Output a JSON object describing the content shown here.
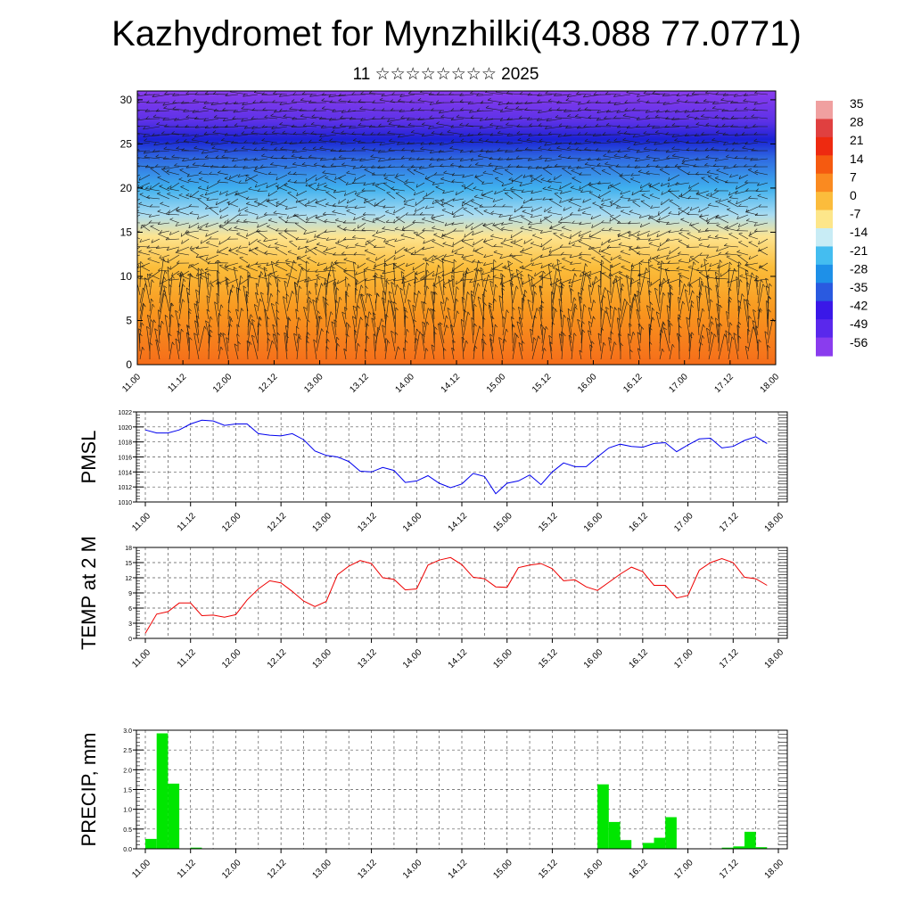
{
  "title": "Kazhydromet for Mynzhilki(43.088 77.0771)",
  "subtitle": "11 ☆☆☆☆☆☆☆☆ 2025",
  "colors": {
    "pmsl_line": "#0000ee",
    "temp_line": "#ee0000",
    "precip_bar": "#00e600"
  },
  "chart_data": [
    {
      "type": "heatmap",
      "name_hint": "vertical cross-section",
      "x_ticks": [
        "11.00",
        "11.12",
        "12.00",
        "12.12",
        "13.00",
        "13.12",
        "14.00",
        "14.12",
        "15.00",
        "15.12",
        "16.00",
        "16.12",
        "17.00",
        "17.12",
        "18.00"
      ],
      "y_ticks": [
        "0",
        "5",
        "10",
        "15",
        "20",
        "25",
        "30"
      ],
      "ylim": [
        0,
        31
      ],
      "colorbar_labels": [
        "35",
        "28",
        "21",
        "14",
        "7",
        "0",
        "-7",
        "-14",
        "-21",
        "-28",
        "-35",
        "-42",
        "-49",
        "-56"
      ],
      "colorbar_colors": [
        "#f0a0a0",
        "#e04040",
        "#ee2a10",
        "#f55a10",
        "#fa8a20",
        "#fbbc3c",
        "#fde68a",
        "#c8ecf5",
        "#44bdf0",
        "#1e90e8",
        "#2a5ae0",
        "#3a18e8",
        "#5a28ec",
        "#8a3cee"
      ],
      "color_levels": [
        {
          "y": 0,
          "c": "#f56d1a"
        },
        {
          "y": 6,
          "c": "#f8961e"
        },
        {
          "y": 11,
          "c": "#fbbd3a"
        },
        {
          "y": 14.5,
          "c": "#fde490"
        },
        {
          "y": 17,
          "c": "#a9dcf2"
        },
        {
          "y": 20,
          "c": "#3fb0ee"
        },
        {
          "y": 23.5,
          "c": "#2e66e0"
        },
        {
          "y": 25.5,
          "c": "#1a22d4"
        },
        {
          "y": 27.5,
          "c": "#5b31e6"
        },
        {
          "y": 31,
          "c": "#8a3cee"
        }
      ]
    },
    {
      "type": "line",
      "ylabel": "PMSL",
      "x_ticks": [
        "11.00",
        "11.12",
        "12.00",
        "12.12",
        "13.00",
        "13.12",
        "14.00",
        "14.12",
        "15.00",
        "15.12",
        "16.00",
        "16.12",
        "17.00",
        "17.12",
        "18.00"
      ],
      "y_ticks": [
        "1010",
        "1012",
        "1014",
        "1016",
        "1018",
        "1020",
        "1022"
      ],
      "ylim": [
        1010,
        1022
      ],
      "x_hours": [
        0,
        3,
        6,
        9,
        12,
        15,
        18,
        21,
        24,
        27,
        30,
        33,
        36,
        39,
        42,
        45,
        48,
        51,
        54,
        57,
        60,
        63,
        66,
        69,
        72,
        75,
        78,
        81,
        84,
        87,
        90,
        93,
        96,
        99,
        102,
        105,
        108,
        111,
        114,
        117,
        120,
        123,
        126,
        129,
        132,
        135,
        138,
        141,
        144,
        147,
        150,
        153,
        156,
        159,
        162,
        165
      ],
      "values": [
        1019.6,
        1019.2,
        1019.2,
        1019.6,
        1020.4,
        1020.9,
        1020.8,
        1020.2,
        1020.4,
        1020.4,
        1019.1,
        1018.9,
        1018.8,
        1019.1,
        1018.3,
        1016.8,
        1016.2,
        1016.0,
        1015.4,
        1014.1,
        1014.0,
        1014.6,
        1014.2,
        1012.6,
        1012.8,
        1013.5,
        1012.5,
        1011.9,
        1012.4,
        1013.8,
        1013.4,
        1011.1,
        1012.5,
        1012.8,
        1013.6,
        1012.3,
        1014.0,
        1015.2,
        1014.7,
        1014.7,
        1016.0,
        1017.2,
        1017.7,
        1017.4,
        1017.3,
        1017.8,
        1017.9,
        1016.7,
        1017.6,
        1018.4,
        1018.5,
        1017.2,
        1017.4,
        1018.2,
        1018.7,
        1017.8
      ]
    },
    {
      "type": "line",
      "ylabel": "TEMP at 2 M",
      "x_ticks": [
        "11.00",
        "11.12",
        "12.00",
        "12.12",
        "13.00",
        "13.12",
        "14.00",
        "14.12",
        "15.00",
        "15.12",
        "16.00",
        "16.12",
        "17.00",
        "17.12",
        "18.00"
      ],
      "y_ticks": [
        "0",
        "3",
        "6",
        "9",
        "12",
        "15",
        "18"
      ],
      "ylim": [
        0,
        18
      ],
      "x_hours": [
        0,
        3,
        6,
        9,
        12,
        15,
        18,
        21,
        24,
        27,
        30,
        33,
        36,
        39,
        42,
        45,
        48,
        51,
        54,
        57,
        60,
        63,
        66,
        69,
        72,
        75,
        78,
        81,
        84,
        87,
        90,
        93,
        96,
        99,
        102,
        105,
        108,
        111,
        114,
        117,
        120,
        123,
        126,
        129,
        132,
        135,
        138,
        141,
        144,
        147,
        150,
        153,
        156,
        159,
        162,
        165
      ],
      "values": [
        1.0,
        4.8,
        5.3,
        7.0,
        7.0,
        4.5,
        4.6,
        4.2,
        4.7,
        7.6,
        9.8,
        11.4,
        11.0,
        9.3,
        7.4,
        6.3,
        7.3,
        12.6,
        14.3,
        15.4,
        14.8,
        12.0,
        11.7,
        9.6,
        9.8,
        14.5,
        15.5,
        16.0,
        14.6,
        12.1,
        11.8,
        10.2,
        10.1,
        14.0,
        14.5,
        14.8,
        13.8,
        11.4,
        11.6,
        10.2,
        9.5,
        11.1,
        12.7,
        14.1,
        13.2,
        10.5,
        10.5,
        8.0,
        8.5,
        13.5,
        15.0,
        15.8,
        15.0,
        12.1,
        11.8,
        10.5
      ]
    },
    {
      "type": "bar",
      "ylabel": "PRECIP, mm",
      "x_ticks": [
        "11.00",
        "11.12",
        "12.00",
        "12.12",
        "13.00",
        "13.12",
        "14.00",
        "14.12",
        "15.00",
        "15.12",
        "16.00",
        "16.12",
        "17.00",
        "17.12",
        "18.00"
      ],
      "y_ticks": [
        "0.0",
        "0.5",
        "1.0",
        "1.5",
        "2.0",
        "2.5",
        "3.0"
      ],
      "ylim": [
        0,
        3
      ],
      "bar_hours": [
        0,
        3,
        6,
        9,
        12,
        15,
        18,
        21,
        24,
        27,
        30,
        33,
        36,
        39,
        42,
        45,
        48,
        51,
        54,
        57,
        60,
        63,
        66,
        69,
        72,
        75,
        78,
        81,
        84,
        87,
        90,
        93,
        96,
        99,
        102,
        105,
        108,
        111,
        114,
        117,
        120,
        123,
        126,
        129,
        132,
        135,
        138,
        141,
        144,
        147,
        150,
        153,
        156,
        159,
        162,
        165
      ],
      "values": [
        0.25,
        2.92,
        1.65,
        0,
        0.03,
        0,
        0,
        0,
        0,
        0,
        0,
        0,
        0,
        0,
        0,
        0,
        0,
        0,
        0,
        0,
        0,
        0,
        0,
        0,
        0,
        0,
        0,
        0,
        0,
        0,
        0,
        0,
        0,
        0,
        0,
        0,
        0,
        0,
        0,
        0,
        1.63,
        0.68,
        0.22,
        0,
        0.15,
        0.28,
        0.8,
        0,
        0,
        0,
        0,
        0.03,
        0.06,
        0.43,
        0.04,
        0
      ]
    }
  ]
}
